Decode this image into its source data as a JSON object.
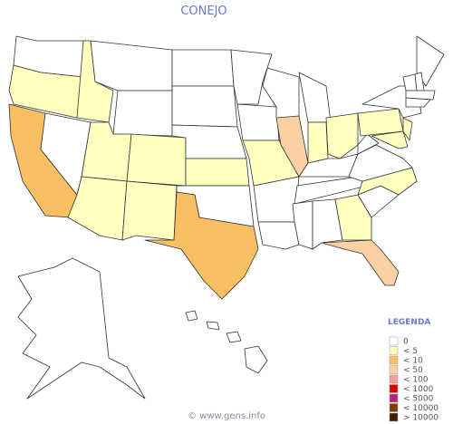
{
  "header": {
    "title": "CONEJO"
  },
  "legend": {
    "title": "LEGENDA",
    "items": [
      {
        "label": "0",
        "color": "#ffffff"
      },
      {
        "label": "< 5",
        "color": "#ffffc0"
      },
      {
        "label": "< 10",
        "color": "#fbbf63"
      },
      {
        "label": "< 50",
        "color": "#fbd0a3"
      },
      {
        "label": "< 100",
        "color": "#f4a0a0"
      },
      {
        "label": "< 1000",
        "color": "#e00000"
      },
      {
        "label": "< 5000",
        "color": "#c02080"
      },
      {
        "label": "< 10000",
        "color": "#804000"
      },
      {
        "label": "> 10000",
        "color": "#402000"
      }
    ]
  },
  "footer": "© www.gens.info"
}
